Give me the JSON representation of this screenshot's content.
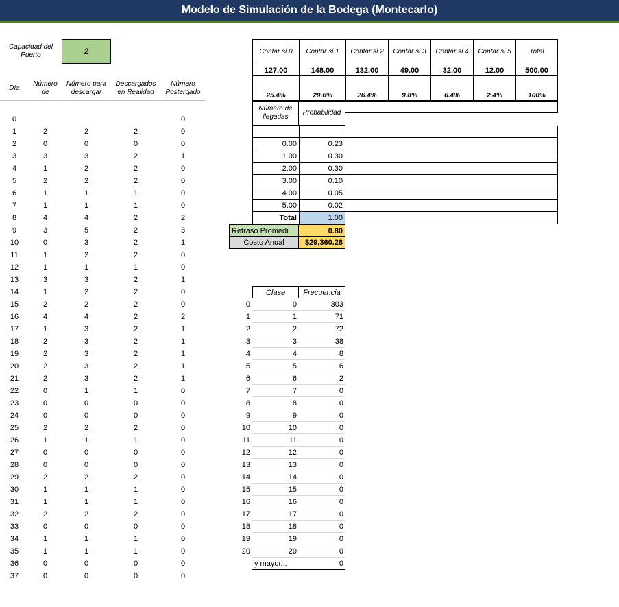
{
  "title": "Modelo de Simulación de la Bodega (Montecarlo)",
  "capacity_label": "Capacidad del Puerto",
  "capacity_value": "2",
  "sim_headers": [
    "Día",
    "Número de",
    "Número para descargar",
    "Descargados en Realidad",
    "Número Postergado"
  ],
  "sim_rows": [
    [
      "0",
      "",
      "",
      "",
      "0"
    ],
    [
      "1",
      "2",
      "2",
      "2",
      "0"
    ],
    [
      "2",
      "0",
      "0",
      "0",
      "0"
    ],
    [
      "3",
      "3",
      "3",
      "2",
      "1"
    ],
    [
      "4",
      "1",
      "2",
      "2",
      "0"
    ],
    [
      "5",
      "2",
      "2",
      "2",
      "0"
    ],
    [
      "6",
      "1",
      "1",
      "1",
      "0"
    ],
    [
      "7",
      "1",
      "1",
      "1",
      "0"
    ],
    [
      "8",
      "4",
      "4",
      "2",
      "2"
    ],
    [
      "9",
      "3",
      "5",
      "2",
      "3"
    ],
    [
      "10",
      "0",
      "3",
      "2",
      "1"
    ],
    [
      "11",
      "1",
      "2",
      "2",
      "0"
    ],
    [
      "12",
      "1",
      "1",
      "1",
      "0"
    ],
    [
      "13",
      "3",
      "3",
      "2",
      "1"
    ],
    [
      "14",
      "1",
      "2",
      "2",
      "0"
    ],
    [
      "15",
      "2",
      "2",
      "2",
      "0"
    ],
    [
      "16",
      "4",
      "4",
      "2",
      "2"
    ],
    [
      "17",
      "1",
      "3",
      "2",
      "1"
    ],
    [
      "18",
      "2",
      "3",
      "2",
      "1"
    ],
    [
      "19",
      "2",
      "3",
      "2",
      "1"
    ],
    [
      "20",
      "2",
      "3",
      "2",
      "1"
    ],
    [
      "21",
      "2",
      "3",
      "2",
      "1"
    ],
    [
      "22",
      "0",
      "1",
      "1",
      "0"
    ],
    [
      "23",
      "0",
      "0",
      "0",
      "0"
    ],
    [
      "24",
      "0",
      "0",
      "0",
      "0"
    ],
    [
      "25",
      "2",
      "2",
      "2",
      "0"
    ],
    [
      "26",
      "1",
      "1",
      "1",
      "0"
    ],
    [
      "27",
      "0",
      "0",
      "0",
      "0"
    ],
    [
      "28",
      "0",
      "0",
      "0",
      "0"
    ],
    [
      "29",
      "2",
      "2",
      "2",
      "0"
    ],
    [
      "30",
      "1",
      "1",
      "1",
      "0"
    ],
    [
      "31",
      "1",
      "1",
      "1",
      "0"
    ],
    [
      "32",
      "2",
      "2",
      "2",
      "0"
    ],
    [
      "33",
      "0",
      "0",
      "0",
      "0"
    ],
    [
      "34",
      "1",
      "1",
      "1",
      "0"
    ],
    [
      "35",
      "1",
      "1",
      "1",
      "0"
    ],
    [
      "36",
      "0",
      "0",
      "0",
      "0"
    ],
    [
      "37",
      "0",
      "0",
      "0",
      "0"
    ]
  ],
  "count_headers": [
    "Contar si 0",
    "Contar si 1",
    "Contar si 2",
    "Contar si 3",
    "Contar si 4",
    "Contar si 5",
    "Total"
  ],
  "count_values": [
    "127.00",
    "148.00",
    "132.00",
    "49.00",
    "32.00",
    "12.00",
    "500.00"
  ],
  "count_pct": [
    "25.4%",
    "29.6%",
    "26.4%",
    "9.8%",
    "6.4%",
    "2.4%",
    "100%"
  ],
  "prob_header1": "Número de llegadas",
  "prob_header2": "Probabilidad",
  "prob_rows": [
    [
      "0.00",
      "0.23"
    ],
    [
      "1.00",
      "0.30"
    ],
    [
      "2.00",
      "0.30"
    ],
    [
      "3.00",
      "0.10"
    ],
    [
      "4.00",
      "0.05"
    ],
    [
      "5.00",
      "0.02"
    ]
  ],
  "prob_total_label": "Total",
  "prob_total_value": "1.00",
  "retraso_label": "Retraso Promedi",
  "retraso_value": "0.80",
  "costo_label": "Costo Anual",
  "costo_value": "$29,360.28",
  "freq_header1": "Clase",
  "freq_header2": "Frecuencia",
  "freq_index": [
    "0",
    "1",
    "2",
    "3",
    "4",
    "5",
    "6",
    "7",
    "8",
    "9",
    "10",
    "11",
    "12",
    "13",
    "14",
    "15",
    "16",
    "17",
    "18",
    "19",
    "20",
    ""
  ],
  "freq_class": [
    "0",
    "1",
    "2",
    "3",
    "4",
    "5",
    "6",
    "7",
    "8",
    "9",
    "10",
    "11",
    "12",
    "13",
    "14",
    "15",
    "16",
    "17",
    "18",
    "19",
    "20",
    "y mayor..."
  ],
  "freq_val": [
    "303",
    "71",
    "72",
    "38",
    "8",
    "6",
    "2",
    "0",
    "0",
    "0",
    "0",
    "0",
    "0",
    "0",
    "0",
    "0",
    "0",
    "0",
    "0",
    "0",
    "0",
    "0"
  ]
}
